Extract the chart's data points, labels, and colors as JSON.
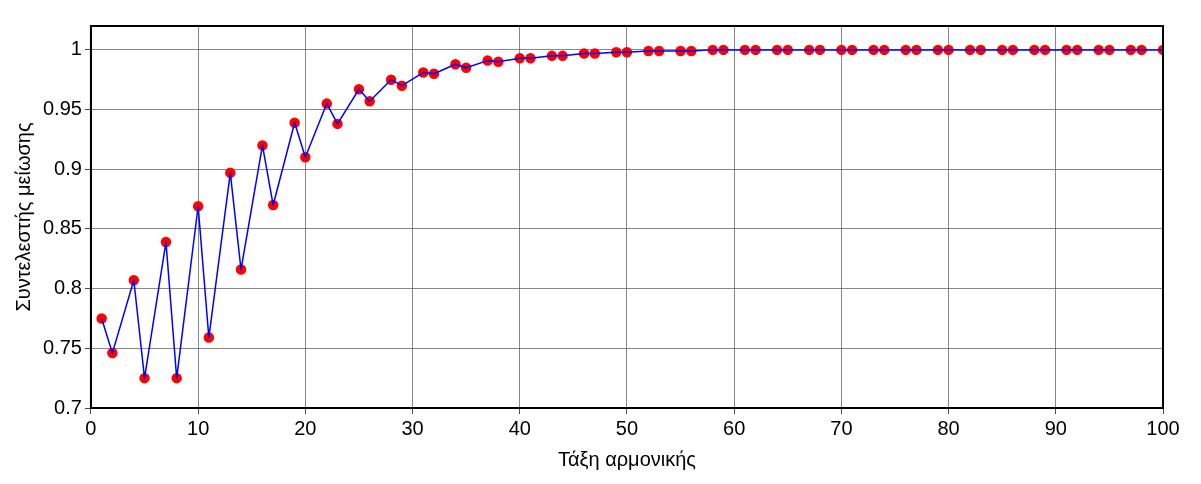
{
  "chart_data": {
    "type": "line",
    "xlabel": "Τάξη αρμονικής",
    "ylabel": "Συντελεστής μείωσης",
    "xlim": [
      0,
      100
    ],
    "xticks": [
      0,
      10,
      20,
      30,
      40,
      50,
      60,
      70,
      80,
      90,
      100
    ],
    "ylim": [
      0.7,
      1.02
    ],
    "yticks": [
      0.7,
      0.75,
      0.8,
      0.85,
      0.9,
      0.95,
      1
    ],
    "grid": true,
    "marker": "circle",
    "line_style": "solid",
    "x": [
      1,
      2,
      4,
      5,
      7,
      8,
      10,
      11,
      13,
      14,
      16,
      17,
      19,
      20,
      22,
      23,
      25,
      26,
      28,
      29,
      31,
      32,
      34,
      35,
      37,
      38,
      40,
      41,
      43,
      44,
      46,
      47,
      49,
      50,
      52,
      53,
      55,
      56,
      58,
      59,
      61,
      62,
      64,
      65,
      67,
      68,
      70,
      71,
      73,
      74,
      76,
      77,
      79,
      80,
      82,
      83,
      85,
      86,
      88,
      89,
      91,
      92,
      94,
      95,
      97,
      98,
      100
    ],
    "series": [
      {
        "color": "#0000ff",
        "marker": "none",
        "values": [
          0.775,
          0.746,
          0.807,
          0.725,
          0.839,
          0.725,
          0.869,
          0.759,
          0.897,
          0.816,
          0.92,
          0.87,
          0.939,
          0.91,
          0.955,
          0.938,
          0.967,
          0.957,
          0.975,
          0.97,
          0.981,
          0.98,
          0.988,
          0.985,
          0.991,
          0.99,
          0.993,
          0.993,
          0.995,
          0.995,
          0.997,
          0.997,
          0.998,
          0.998,
          0.999,
          0.999,
          0.999,
          0.999,
          1,
          1,
          1,
          1,
          1,
          1,
          1,
          1,
          1,
          1,
          1,
          1,
          1,
          1,
          1,
          1,
          1,
          1,
          1,
          1,
          1,
          1,
          1,
          1,
          1,
          1,
          1,
          1,
          1
        ]
      },
      {
        "type": "scatter",
        "color": "#ff0000",
        "values": [
          0.775,
          0.746,
          0.807,
          0.725,
          0.839,
          0.725,
          0.869,
          0.759,
          0.897,
          0.816,
          0.92,
          0.87,
          0.939,
          0.91,
          0.955,
          0.938,
          0.967,
          0.957,
          0.975,
          0.97,
          0.981,
          0.98,
          0.988,
          0.985,
          0.991,
          0.99,
          0.993,
          0.993,
          0.995,
          0.995,
          0.997,
          0.997,
          0.998,
          0.998,
          0.999,
          0.999,
          0.999,
          0.999,
          1,
          1,
          1,
          1,
          1,
          1,
          1,
          1,
          1,
          1,
          1,
          1,
          1,
          1,
          1,
          1,
          1,
          1,
          1,
          1,
          1,
          1,
          1,
          1,
          1,
          1,
          1,
          1,
          1
        ]
      }
    ]
  }
}
